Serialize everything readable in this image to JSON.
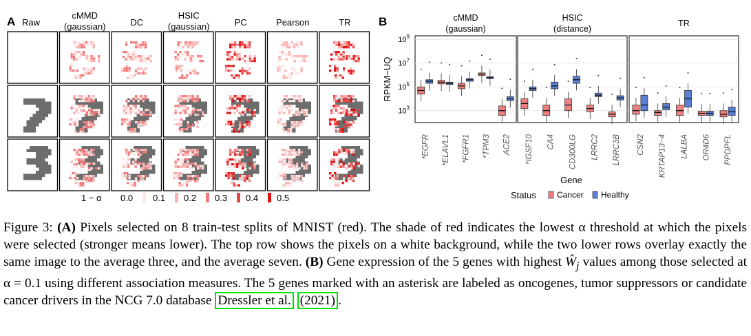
{
  "panel_a": {
    "label": "A",
    "columns": [
      "Raw",
      "cMMD\n(gaussian)",
      "DC",
      "HSIC\n(gaussian)",
      "PC",
      "Pearson",
      "TR"
    ],
    "legend_title": "1 − α",
    "legend_values": [
      "0.0",
      "0.1",
      "0.2",
      "0.3",
      "0.4",
      "0.5"
    ],
    "colors": [
      "#fde7e7",
      "#f9b3b3",
      "#f27a7a",
      "#e94444",
      "#e01010"
    ]
  },
  "panel_b": {
    "label": "B",
    "facets": [
      "cMMD\n(gaussian)",
      "HSIC\n(distance)",
      "TR"
    ],
    "ylabel": "RPKM−UQ",
    "xlabel": "Gene",
    "yticks": [
      "10^3",
      "10^5",
      "10^7",
      "10^9"
    ],
    "legend_title": "Status",
    "legend_items": [
      {
        "label": "Cancer",
        "color": "#f08080"
      },
      {
        "label": "Healthy",
        "color": "#5a7fd6"
      }
    ]
  },
  "chart_data": {
    "type": "boxplot",
    "ylabel": "RPKM−UQ",
    "xlabel": "Gene",
    "y_scale": "log10",
    "ylim": [
      100.0,
      1000000000.0
    ],
    "facets": [
      {
        "name": "cMMD (gaussian)",
        "genes": [
          {
            "gene": "*EGFR",
            "cancer": {
              "median": 50000.0,
              "q1": 25000.0,
              "q3": 100000.0
            },
            "healthy": {
              "median": 300000.0,
              "q1": 200000.0,
              "q3": 400000.0
            }
          },
          {
            "gene": "*ELAVL1",
            "cancer": {
              "median": 250000.0,
              "q1": 180000.0,
              "q3": 350000.0
            },
            "healthy": {
              "median": 200000.0,
              "q1": 160000.0,
              "q3": 250000.0
            }
          },
          {
            "gene": "*FGFR1",
            "cancer": {
              "median": 120000.0,
              "q1": 70000.0,
              "q3": 200000.0
            },
            "healthy": {
              "median": 400000.0,
              "q1": 300000.0,
              "q3": 500000.0
            }
          },
          {
            "gene": "*TPM3",
            "cancer": {
              "median": 1200000.0,
              "q1": 900000.0,
              "q3": 1500000.0
            },
            "healthy": {
              "median": 600000.0,
              "q1": 500000.0,
              "q3": 700000.0
            }
          },
          {
            "gene": "ACE2",
            "cancer": {
              "median": 1000.0,
              "q1": 400.0,
              "q3": 2500.0
            },
            "healthy": {
              "median": 10000.0,
              "q1": 7000.0,
              "q3": 15000.0
            }
          }
        ]
      },
      {
        "name": "HSIC (distance)",
        "genes": [
          {
            "gene": "*IGSF10",
            "cancer": {
              "median": 4000.0,
              "q1": 1500.0,
              "q3": 10000.0
            },
            "healthy": {
              "median": 70000.0,
              "q1": 50000.0,
              "q3": 100000.0
            }
          },
          {
            "gene": "CA4",
            "cancer": {
              "median": 1000.0,
              "q1": 400.0,
              "q3": 3000.0
            },
            "healthy": {
              "median": 120000.0,
              "q1": 70000.0,
              "q3": 250000.0
            }
          },
          {
            "gene": "CD300LG",
            "cancer": {
              "median": 3000.0,
              "q1": 1000.0,
              "q3": 10000.0
            },
            "healthy": {
              "median": 400000.0,
              "q1": 200000.0,
              "q3": 800000.0
            }
          },
          {
            "gene": "LRRC2",
            "cancer": {
              "median": 1500.0,
              "q1": 800.0,
              "q3": 3000.0
            },
            "healthy": {
              "median": 20000.0,
              "q1": 15000.0,
              "q3": 30000.0
            }
          },
          {
            "gene": "LRRC3B",
            "cancer": {
              "median": 500.0,
              "q1": 300.0,
              "q3": 800.0
            },
            "healthy": {
              "median": 12000.0,
              "q1": 8000.0,
              "q3": 18000.0
            }
          }
        ]
      },
      {
        "name": "TR",
        "genes": [
          {
            "gene": "CSN2",
            "cancer": {
              "median": 1000.0,
              "q1": 500.0,
              "q3": 3000.0
            },
            "healthy": {
              "median": 3000.0,
              "q1": 1000.0,
              "q3": 20000.0
            }
          },
          {
            "gene": "KRTAP13−4",
            "cancer": {
              "median": 700.0,
              "q1": 400.0,
              "q3": 1000.0
            },
            "healthy": {
              "median": 2000.0,
              "q1": 1200.0,
              "q3": 4000.0
            }
          },
          {
            "gene": "LALBA",
            "cancer": {
              "median": 1000.0,
              "q1": 400.0,
              "q3": 3000.0
            },
            "healthy": {
              "median": 10000.0,
              "q1": 2000.0,
              "q3": 50000.0
            }
          },
          {
            "gene": "OR4D6",
            "cancer": {
              "median": 600.0,
              "q1": 400.0,
              "q3": 900.0
            },
            "healthy": {
              "median": 600.0,
              "q1": 400.0,
              "q3": 900.0
            }
          },
          {
            "gene": "PPDPFL",
            "cancer": {
              "median": 500.0,
              "q1": 300.0,
              "q3": 1000.0
            },
            "healthy": {
              "median": 800.0,
              "q1": 400.0,
              "q3": 2000.0
            }
          }
        ]
      }
    ],
    "legend": {
      "title": "Status",
      "items": [
        "Cancer",
        "Healthy"
      ],
      "position": "bottom"
    }
  },
  "caption": {
    "fig_label": "Figure 3:",
    "a_label": "(A)",
    "a_text": " Pixels selected on 8 train-test splits of MNIST (red). The shade of red indicates the lowest α threshold at which the pixels were selected (stronger means lower). The top row shows the pixels on a white background, while the two lower rows overlay exactly the same image to the average three, and the average seven. ",
    "b_label": "(B)",
    "b_text_1": " Gene expression of the 5 genes with highest ",
    "w_symbol": "Ŵ",
    "w_sub": "j",
    "b_text_2": " values among those selected at α = 0.1 using different association measures. The 5 genes marked with an asterisk are labeled as oncogenes, tumor suppressors or candidate cancer drivers in the NCG 7.0 database ",
    "cite_author": "Dressler et al.",
    "cite_year": "(2021)",
    "end": "."
  }
}
